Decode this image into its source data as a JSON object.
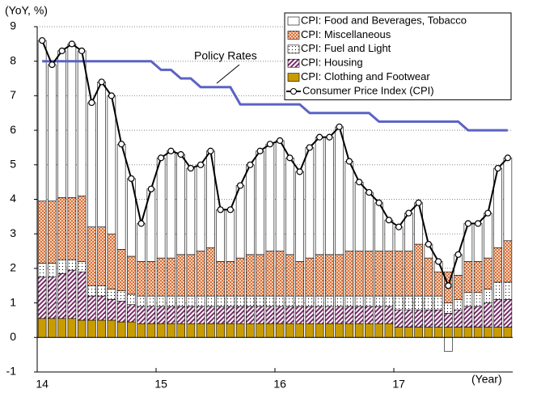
{
  "chart_data": {
    "type": "stacked_bar_line",
    "y_label": "(YoY, %)",
    "x_label": "(Year)",
    "categories": [
      "14",
      null,
      null,
      null,
      null,
      null,
      null,
      null,
      null,
      null,
      null,
      null,
      "15",
      null,
      null,
      null,
      null,
      null,
      null,
      null,
      null,
      null,
      null,
      null,
      "16",
      null,
      null,
      null,
      null,
      null,
      null,
      null,
      null,
      null,
      null,
      null,
      "17",
      null,
      null,
      null,
      null,
      null,
      null,
      null,
      null,
      null,
      null,
      null
    ],
    "ylim": [
      -1,
      9
    ],
    "yticks": [
      -1,
      0,
      1,
      2,
      3,
      4,
      5,
      6,
      7,
      8,
      9
    ],
    "grid": true,
    "legend": "top-right",
    "series": [
      {
        "name": "CPI: Clothing and Footwear",
        "color": "#c89b00",
        "pattern": "solid",
        "values": [
          0.55,
          0.55,
          0.55,
          0.55,
          0.5,
          0.5,
          0.5,
          0.5,
          0.45,
          0.45,
          0.4,
          0.4,
          0.4,
          0.4,
          0.4,
          0.4,
          0.4,
          0.4,
          0.4,
          0.4,
          0.4,
          0.4,
          0.4,
          0.4,
          0.4,
          0.4,
          0.4,
          0.4,
          0.4,
          0.4,
          0.4,
          0.4,
          0.4,
          0.4,
          0.4,
          0.4,
          0.3,
          0.3,
          0.3,
          0.3,
          0.3,
          0.3,
          0.3,
          0.3,
          0.3,
          0.3,
          0.3,
          0.3
        ]
      },
      {
        "name": "CPI: Housing",
        "color": "#7a2c6a",
        "pattern": "stripes",
        "values": [
          1.2,
          1.2,
          1.3,
          1.4,
          1.4,
          0.7,
          0.7,
          0.6,
          0.6,
          0.5,
          0.5,
          0.5,
          0.5,
          0.5,
          0.5,
          0.5,
          0.5,
          0.5,
          0.5,
          0.5,
          0.5,
          0.5,
          0.5,
          0.5,
          0.5,
          0.5,
          0.5,
          0.5,
          0.5,
          0.5,
          0.5,
          0.5,
          0.5,
          0.5,
          0.5,
          0.5,
          0.5,
          0.5,
          0.5,
          0.5,
          0.5,
          0.4,
          0.5,
          0.6,
          0.6,
          0.7,
          0.8,
          0.8
        ]
      },
      {
        "name": "CPI: Fuel and Light",
        "color": "#000000",
        "pattern": "dots",
        "values": [
          0.4,
          0.4,
          0.4,
          0.3,
          0.3,
          0.3,
          0.3,
          0.3,
          0.3,
          0.3,
          0.3,
          0.3,
          0.3,
          0.3,
          0.3,
          0.3,
          0.3,
          0.3,
          0.3,
          0.3,
          0.3,
          0.3,
          0.3,
          0.3,
          0.3,
          0.3,
          0.3,
          0.3,
          0.3,
          0.3,
          0.3,
          0.3,
          0.3,
          0.3,
          0.3,
          0.3,
          0.4,
          0.4,
          0.4,
          0.4,
          0.4,
          0.3,
          0.3,
          0.4,
          0.4,
          0.4,
          0.5,
          0.5
        ]
      },
      {
        "name": "CPI: Miscellaneous",
        "color": "#d9703a",
        "pattern": "check",
        "values": [
          1.8,
          1.8,
          1.8,
          1.8,
          1.9,
          1.7,
          1.7,
          1.6,
          1.2,
          1.1,
          1.0,
          1.0,
          1.1,
          1.1,
          1.2,
          1.2,
          1.3,
          1.4,
          1.0,
          1.0,
          1.1,
          1.2,
          1.2,
          1.3,
          1.3,
          1.2,
          1.0,
          1.1,
          1.2,
          1.2,
          1.2,
          1.3,
          1.3,
          1.3,
          1.3,
          1.3,
          1.3,
          1.3,
          1.5,
          1.1,
          0.7,
          0.9,
          0.7,
          0.9,
          0.9,
          0.9,
          1.0,
          1.2
        ]
      },
      {
        "name": "CPI: Food and Beverages, Tobacco",
        "color": "#ffffff",
        "pattern": "solid",
        "values": [
          4.65,
          3.95,
          4.25,
          4.45,
          4.2,
          3.6,
          4.2,
          4.0,
          3.05,
          2.25,
          1.1,
          2.1,
          2.9,
          3.1,
          2.9,
          2.5,
          2.5,
          2.8,
          1.5,
          1.5,
          2.1,
          2.6,
          3.0,
          3.1,
          3.2,
          2.8,
          2.6,
          3.2,
          3.4,
          3.4,
          3.7,
          2.6,
          2.0,
          1.7,
          1.4,
          0.9,
          0.7,
          1.1,
          1.2,
          0.4,
          0.3,
          -0.4,
          0.6,
          1.1,
          1.1,
          1.3,
          2.3,
          2.4
        ]
      }
    ],
    "line": {
      "name": "Consumer Price Index (CPI)",
      "color": "#000000",
      "values": [
        8.6,
        7.9,
        8.3,
        8.5,
        8.3,
        6.8,
        7.4,
        7.0,
        5.6,
        4.6,
        3.3,
        4.3,
        5.2,
        5.4,
        5.3,
        4.9,
        5.0,
        5.4,
        3.7,
        3.7,
        4.4,
        5.0,
        5.4,
        5.6,
        5.7,
        5.2,
        4.8,
        5.5,
        5.8,
        5.8,
        6.1,
        5.1,
        4.5,
        4.2,
        3.9,
        3.4,
        3.2,
        3.6,
        3.9,
        2.7,
        2.2,
        1.5,
        2.4,
        3.3,
        3.3,
        3.6,
        4.9,
        5.2
      ]
    },
    "policy_rate": {
      "name": "Policy Rates",
      "color": "#5b63c4",
      "values": [
        8.0,
        8.0,
        8.0,
        8.0,
        8.0,
        8.0,
        8.0,
        8.0,
        8.0,
        8.0,
        8.0,
        8.0,
        7.75,
        7.75,
        7.5,
        7.5,
        7.25,
        7.25,
        7.25,
        7.25,
        6.75,
        6.75,
        6.75,
        6.75,
        6.75,
        6.75,
        6.75,
        6.5,
        6.5,
        6.5,
        6.5,
        6.5,
        6.5,
        6.5,
        6.25,
        6.25,
        6.25,
        6.25,
        6.25,
        6.25,
        6.25,
        6.25,
        6.25,
        6.0,
        6.0,
        6.0,
        6.0,
        6.0
      ]
    }
  }
}
